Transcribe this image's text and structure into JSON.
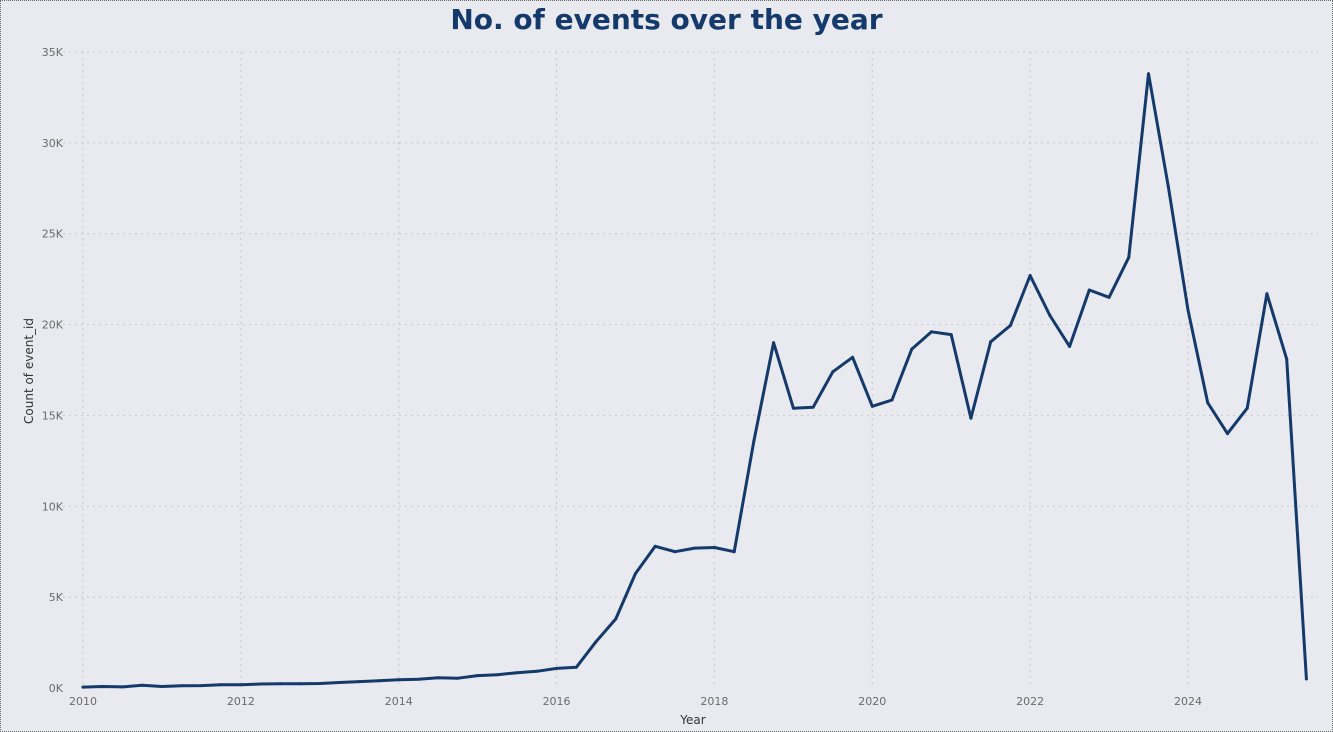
{
  "colors": {
    "series": "#14396b",
    "background": "#e9eaef",
    "title": "#14396b"
  },
  "chart_data": {
    "type": "line",
    "title": "No. of events over the year",
    "xlabel": "Year",
    "ylabel": "Count of event_id",
    "xlim": [
      2010,
      2025.75
    ],
    "ylim": [
      0,
      35000
    ],
    "grid": true,
    "legend": "none",
    "x_ticks": [
      2010,
      2012,
      2014,
      2016,
      2018,
      2020,
      2022,
      2024
    ],
    "x_tick_labels": [
      "2010",
      "2012",
      "2014",
      "2016",
      "2018",
      "2020",
      "2022",
      "2024"
    ],
    "y_ticks": [
      0,
      5000,
      10000,
      15000,
      20000,
      25000,
      30000,
      35000
    ],
    "y_tick_labels": [
      "0K",
      "5K",
      "10K",
      "15K",
      "20K",
      "25K",
      "30K",
      "35K"
    ],
    "series": [
      {
        "x": [
          2010.0,
          2010.25,
          2010.5,
          2010.75,
          2011.0,
          2011.25,
          2011.5,
          2011.75,
          2012.0,
          2012.25,
          2012.5,
          2012.75,
          2013.0,
          2013.25,
          2013.5,
          2013.75,
          2014.0,
          2014.25,
          2014.5,
          2014.75,
          2015.0,
          2015.25,
          2015.5,
          2015.75,
          2016.0,
          2016.25,
          2016.5,
          2016.75,
          2017.0,
          2017.25,
          2017.5,
          2017.75,
          2018.0,
          2018.25,
          2018.5,
          2018.75,
          2019.0,
          2019.25,
          2019.5,
          2019.75,
          2020.0,
          2020.25,
          2020.5,
          2020.75,
          2021.0,
          2021.25,
          2021.5,
          2021.75,
          2022.0,
          2022.25,
          2022.5,
          2022.75,
          2023.0,
          2023.25,
          2023.5,
          2023.75,
          2024.0,
          2024.25,
          2024.5,
          2024.75,
          2025.0,
          2025.25,
          2025.5
        ],
        "values": [
          50,
          80,
          60,
          150,
          80,
          120,
          130,
          180,
          180,
          220,
          230,
          230,
          250,
          300,
          350,
          400,
          450,
          480,
          560,
          540,
          680,
          730,
          840,
          920,
          1080,
          1140,
          2550,
          3800,
          6300,
          7800,
          7500,
          7700,
          7730,
          7500,
          13600,
          19000,
          15400,
          15450,
          17400,
          18200,
          15500,
          15850,
          18650,
          19600,
          19450,
          14850,
          19050,
          19950,
          22700,
          20500,
          18800,
          21900,
          21500,
          23700,
          33800,
          27600,
          20800,
          15700,
          14000,
          15400,
          21700,
          18100,
          500
        ]
      }
    ]
  }
}
